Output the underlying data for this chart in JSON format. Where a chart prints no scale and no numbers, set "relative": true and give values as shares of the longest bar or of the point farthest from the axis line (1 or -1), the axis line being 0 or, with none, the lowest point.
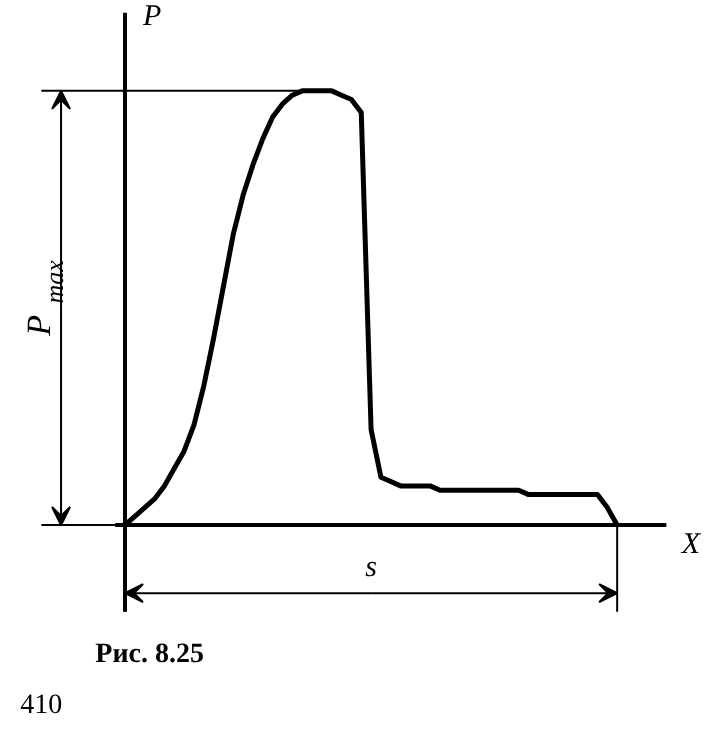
{
  "chart_data": {
    "type": "line",
    "relative": true,
    "ylabel": "P",
    "xlabel": "X",
    "color": "#000000",
    "marker": "none",
    "line_style": "solid",
    "categories": [
      null,
      null,
      null,
      null,
      null,
      null,
      null,
      null,
      null,
      null,
      null,
      null,
      null,
      null,
      null,
      null,
      null,
      null,
      null,
      null,
      null,
      null,
      null,
      null,
      null,
      null,
      null,
      null,
      null,
      null,
      null,
      null,
      null,
      null,
      null,
      null,
      null,
      null,
      null,
      null,
      null,
      null,
      null,
      null,
      null,
      null,
      null,
      null,
      null,
      null,
      null
    ],
    "values": [
      0,
      0.02,
      0.04,
      0.06,
      0.09,
      0.13,
      0.17,
      0.23,
      0.32,
      0.43,
      0.55,
      0.67,
      0.76,
      0.83,
      0.89,
      0.94,
      0.97,
      0.99,
      1.0,
      1.0,
      1.0,
      1.0,
      0.99,
      0.98,
      0.95,
      0.22,
      0.11,
      0.1,
      0.09,
      0.09,
      0.09,
      0.09,
      0.08,
      0.08,
      0.08,
      0.08,
      0.08,
      0.08,
      0.08,
      0.08,
      0.08,
      0.07,
      0.07,
      0.07,
      0.07,
      0.07,
      0.07,
      0.07,
      0.07,
      0.04,
      0
    ],
    "annotations": [
      "P$_{max}$",
      "s",
      "Рис. 8.25",
      "410"
    ]
  }
}
